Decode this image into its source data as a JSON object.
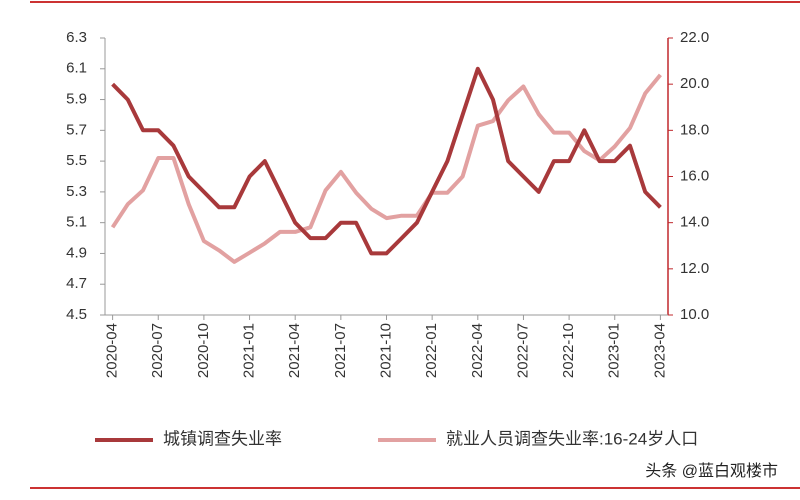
{
  "chart_data": {
    "type": "line",
    "categories": [
      "2020-04",
      null,
      null,
      "2020-07",
      null,
      null,
      "2020-10",
      null,
      null,
      "2021-01",
      null,
      null,
      "2021-04",
      null,
      null,
      "2021-07",
      null,
      null,
      "2021-10",
      null,
      null,
      "2022-01",
      null,
      null,
      "2022-04",
      null,
      null,
      "2022-07",
      null,
      null,
      "2022-10",
      null,
      null,
      "2023-01",
      null,
      null,
      "2023-04"
    ],
    "series": [
      {
        "name": "城镇调查失业率",
        "color": "#a8393b",
        "values": [
          6.0,
          5.9,
          5.7,
          5.7,
          5.6,
          5.4,
          5.3,
          5.2,
          5.2,
          5.4,
          5.5,
          5.3,
          5.1,
          5.0,
          5.0,
          5.1,
          5.1,
          4.9,
          4.9,
          5.0,
          5.1,
          5.3,
          5.5,
          5.8,
          6.1,
          5.9,
          5.5,
          5.4,
          5.3,
          5.5,
          5.5,
          5.7,
          5.5,
          5.5,
          5.6,
          5.3,
          5.2
        ]
      },
      {
        "name": "就业人员调查失业率:16-24岁人口",
        "color": "#e2a1a1",
        "axis": "y2",
        "values": [
          13.8,
          14.8,
          15.4,
          16.8,
          16.8,
          14.8,
          13.2,
          12.8,
          12.3,
          12.7,
          13.1,
          13.6,
          13.6,
          13.8,
          15.4,
          16.2,
          15.3,
          14.6,
          14.2,
          14.3,
          14.3,
          15.3,
          15.3,
          16.0,
          18.2,
          18.4,
          19.3,
          19.9,
          18.7,
          17.9,
          17.9,
          17.1,
          16.7,
          17.3,
          18.1,
          19.6,
          20.4
        ]
      }
    ],
    "ylim": [
      4.5,
      6.3
    ],
    "yticks": [
      4.5,
      4.7,
      4.9,
      5.1,
      5.3,
      5.5,
      5.7,
      5.9,
      6.1,
      6.3
    ],
    "y2lim": [
      10,
      22
    ],
    "y2ticks": [
      {
        "value": 10,
        "label": "10.0"
      },
      {
        "value": 12,
        "label": "12.0"
      },
      {
        "value": 14,
        "label": "14.0"
      },
      {
        "value": 16,
        "label": "16.0"
      },
      {
        "value": 18,
        "label": "18.0"
      },
      {
        "value": 20,
        "label": "20.0"
      },
      {
        "value": 22,
        "label": "22.0"
      }
    ],
    "grid": false,
    "legend": "bottom",
    "watermark": "头条 @蓝白观楼市"
  }
}
